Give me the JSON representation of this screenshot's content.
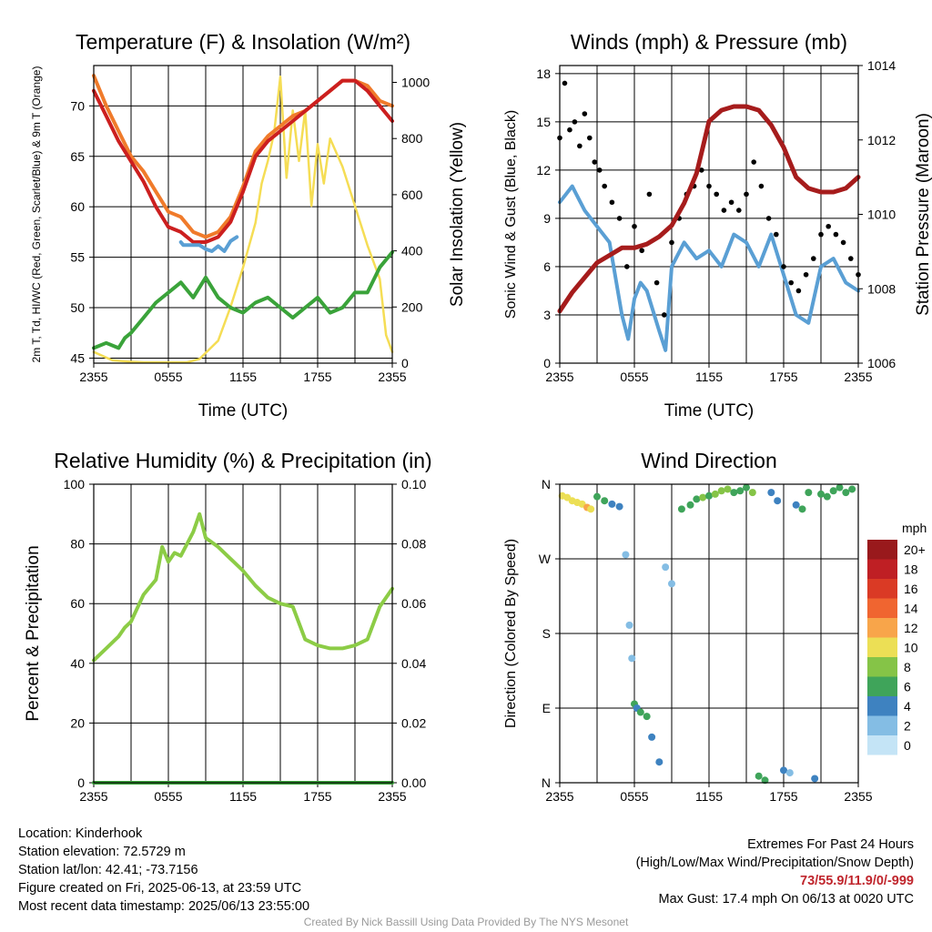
{
  "colors": {
    "temp_red": "#cc1f1f",
    "temp_orange": "#f07b2b",
    "dewpoint_green": "#3aa33a",
    "index_blue": "#5a9fd4",
    "insolation_yellow": "#f5dd55",
    "pressure_maroon": "#a61c1c",
    "wind_blue": "#5a9fd4",
    "gust_black": "#000000",
    "rh_green": "#8ccc46",
    "precip_green": "#3aa33a",
    "credit_gray": "#9a9a9a",
    "extremes_red": "#c0262d"
  },
  "chart_data": [
    {
      "id": "temp",
      "type": "line",
      "title": "Temperature (F) & Insolation (W/m²)",
      "xlabel": "Time (UTC)",
      "ylabel": "2m T, Td, HI/WC (Red, Green, Scarlet/Blue) & 9m T (Orange)",
      "y2label": "Solar Insolation (Yellow)",
      "x_ticks": [
        "2355",
        "0555",
        "1155",
        "1755",
        "2355"
      ],
      "x_range_hours": [
        0,
        24
      ],
      "ylim": [
        44.5,
        74
      ],
      "y_ticks": [
        45,
        50,
        55,
        60,
        65,
        70
      ],
      "y2lim": [
        0,
        1060
      ],
      "y2_ticks": [
        0,
        200,
        400,
        600,
        800,
        1000
      ],
      "series": [
        {
          "axis": "y2",
          "color_key": "insolation_yellow",
          "x": [
            0,
            1.5,
            3,
            4,
            5,
            6,
            7.5,
            8.5,
            10,
            11,
            12,
            13,
            13.5,
            14,
            14.5,
            15,
            15.5,
            16,
            16.5,
            17,
            17.5,
            18,
            18.5,
            19,
            20,
            21,
            22,
            23,
            23.5,
            24
          ],
          "y": [
            40,
            10,
            5,
            3,
            3,
            3,
            3,
            15,
            80,
            200,
            340,
            500,
            640,
            720,
            820,
            1020,
            660,
            900,
            720,
            900,
            560,
            780,
            640,
            800,
            700,
            560,
            420,
            300,
            100,
            40
          ]
        },
        {
          "axis": "y",
          "color_key": "temp_orange",
          "x": [
            0,
            1,
            2,
            3,
            4,
            5,
            6,
            7,
            8,
            9,
            10,
            11,
            12,
            13,
            14,
            15,
            16,
            17,
            18,
            19,
            20,
            21,
            22,
            23,
            24
          ],
          "y": [
            73,
            70,
            67.5,
            65,
            63.5,
            61.5,
            59.5,
            59,
            57.5,
            57,
            57.5,
            59,
            62,
            65.5,
            67,
            68,
            69,
            69.5,
            70.5,
            71.5,
            72.5,
            72.5,
            72,
            70.5,
            70
          ]
        },
        {
          "axis": "y",
          "color_key": "temp_red",
          "x": [
            0,
            1,
            2,
            3,
            4,
            5,
            6,
            7,
            8,
            9,
            10,
            11,
            12,
            13,
            14,
            15,
            16,
            17,
            18,
            19,
            20,
            21,
            22,
            23,
            24
          ],
          "y": [
            71.5,
            69,
            66.5,
            64.5,
            62.5,
            60,
            58,
            57.5,
            56.5,
            56.5,
            57,
            58.5,
            61.5,
            65,
            66.5,
            67.5,
            68.5,
            69.5,
            70.5,
            71.5,
            72.5,
            72.5,
            71.5,
            70,
            68.5
          ]
        },
        {
          "axis": "y",
          "color_key": "index_blue",
          "x": [
            7,
            7.2,
            8.5,
            9,
            9.5,
            10,
            10.5,
            11,
            11.5
          ],
          "y": [
            56.5,
            56.2,
            56.2,
            55.8,
            55.6,
            56.1,
            55.6,
            56.6,
            57
          ]
        },
        {
          "axis": "y",
          "color_key": "dewpoint_green",
          "x": [
            0,
            1,
            2,
            2.5,
            3,
            4,
            5,
            6,
            7,
            8,
            9,
            10,
            11,
            12,
            13,
            14,
            15,
            16,
            17,
            18,
            19,
            20,
            21,
            22,
            23,
            24
          ],
          "y": [
            46,
            46.5,
            46,
            47,
            47.5,
            49,
            50.5,
            51.5,
            52.5,
            51,
            53,
            51,
            50,
            49.5,
            50.5,
            51,
            50,
            49,
            50,
            51,
            49.5,
            50,
            51.5,
            51.5,
            54,
            55.5
          ]
        }
      ]
    },
    {
      "id": "wind",
      "type": "line",
      "title": "Winds (mph) & Pressure (mb)",
      "xlabel": "Time (UTC)",
      "ylabel": "Sonic Wind & Gust (Blue, Black)",
      "y2label": "Station Pressure (Maroon)",
      "x_ticks": [
        "2355",
        "0555",
        "1155",
        "1755",
        "2355"
      ],
      "x_range_hours": [
        0,
        24
      ],
      "ylim": [
        0,
        18.5
      ],
      "y_ticks": [
        0,
        3,
        6,
        9,
        12,
        15,
        18
      ],
      "y2lim": [
        1006,
        1014
      ],
      "y2_ticks": [
        1006,
        1008,
        1010,
        1012,
        1014
      ],
      "series": [
        {
          "axis": "y",
          "kind": "line",
          "color_key": "wind_blue",
          "x": [
            0,
            1,
            2,
            3,
            4,
            5,
            5.5,
            6,
            6.5,
            7,
            8,
            8.5,
            9,
            10,
            11,
            12,
            13,
            14,
            15,
            16,
            17,
            18,
            19,
            20,
            21,
            22,
            23,
            24
          ],
          "y": [
            10,
            11,
            9.5,
            8.5,
            7.5,
            3,
            1.5,
            4,
            5,
            4.5,
            2,
            0.8,
            6,
            7.5,
            6.5,
            7,
            6,
            8,
            7.5,
            6,
            8,
            5.5,
            3,
            2.5,
            6,
            6.5,
            5,
            4.5
          ]
        },
        {
          "axis": "y",
          "kind": "points",
          "color_key": "gust_black",
          "x": [
            0,
            0.4,
            0.8,
            1.2,
            1.6,
            2,
            2.4,
            2.8,
            3.2,
            3.6,
            4.2,
            4.8,
            5.4,
            6,
            6.6,
            7.2,
            7.8,
            8.4,
            9,
            9.6,
            10.2,
            10.8,
            11.4,
            12,
            12.6,
            13.2,
            13.8,
            14.4,
            15,
            15.6,
            16.2,
            16.8,
            17.4,
            18,
            18.6,
            19.2,
            19.8,
            20.4,
            21,
            21.6,
            22.2,
            22.8,
            23.4,
            24
          ],
          "y": [
            14,
            17.4,
            14.5,
            15,
            13.5,
            15.5,
            14,
            12.5,
            12,
            11,
            10,
            9,
            6,
            8.5,
            7,
            10.5,
            5,
            3,
            7.5,
            9,
            10.5,
            11,
            12,
            11,
            10.5,
            9.5,
            10,
            9.5,
            10.5,
            12.5,
            11,
            9,
            8,
            6,
            5,
            4.5,
            5.5,
            6.5,
            8,
            8.5,
            8,
            7.5,
            6.5,
            5.5
          ]
        },
        {
          "axis": "y2",
          "kind": "line",
          "color_key": "pressure_maroon",
          "x": [
            0,
            1,
            2,
            3,
            4,
            5,
            6,
            7,
            8,
            9,
            10,
            11,
            11.5,
            12,
            13,
            14,
            15,
            16,
            17,
            18,
            19,
            20,
            21,
            22,
            23,
            24
          ],
          "y": [
            1007.4,
            1007.9,
            1008.3,
            1008.7,
            1008.9,
            1009.1,
            1009.1,
            1009.2,
            1009.4,
            1009.7,
            1010.3,
            1011.1,
            1011.8,
            1012.5,
            1012.8,
            1012.9,
            1012.9,
            1012.8,
            1012.4,
            1011.8,
            1011.0,
            1010.7,
            1010.6,
            1010.6,
            1010.7,
            1011.0
          ]
        }
      ]
    },
    {
      "id": "rh",
      "type": "line",
      "title": "Relative Humidity (%) & Precipitation (in)",
      "xlabel": "",
      "ylabel": "Percent & Precipitation",
      "x_ticks": [
        "2355",
        "0555",
        "1155",
        "1755",
        "2355"
      ],
      "x_range_hours": [
        0,
        24
      ],
      "ylim": [
        0,
        100
      ],
      "y_ticks": [
        0,
        20,
        40,
        60,
        80,
        100
      ],
      "y2lim": [
        0,
        0.1
      ],
      "y2_ticks": [
        "0.00",
        "0.02",
        "0.04",
        "0.06",
        "0.08",
        "0.10"
      ],
      "series": [
        {
          "axis": "y",
          "color_key": "rh_green",
          "x": [
            0,
            1,
            2,
            2.5,
            3,
            4,
            5,
            5.5,
            6,
            6.5,
            7,
            8,
            8.5,
            9,
            10,
            11,
            12,
            13,
            14,
            15,
            16,
            17,
            18,
            19,
            20,
            21,
            22,
            23,
            24
          ],
          "y": [
            41,
            45,
            49,
            52,
            54,
            63,
            68,
            79,
            74,
            77,
            76,
            84,
            90,
            82,
            79,
            75,
            71,
            66,
            62,
            60,
            59,
            48,
            46,
            45,
            45,
            46,
            48,
            59,
            65
          ]
        },
        {
          "axis": "y2",
          "color_key": "precip_green",
          "x": [
            0,
            24
          ],
          "y": [
            0,
            0
          ]
        }
      ]
    },
    {
      "id": "wdir",
      "type": "scatter",
      "title": "Wind Direction",
      "xlabel": "",
      "ylabel": "Direction (Colored By Speed)",
      "x_ticks": [
        "2355",
        "0555",
        "1155",
        "1755",
        "2355"
      ],
      "x_range_hours": [
        0,
        24
      ],
      "ylim": [
        0,
        360
      ],
      "y_ticks": [
        "N",
        "E",
        "S",
        "W",
        "N"
      ],
      "legend": {
        "title": "mph",
        "labels": [
          "20+",
          "18",
          "16",
          "14",
          "12",
          "10",
          "8",
          "6",
          "4",
          "2",
          "0"
        ],
        "colors": [
          "#99191c",
          "#bf1f24",
          "#da3a25",
          "#f06530",
          "#f8a54a",
          "#ecdf55",
          "#85c447",
          "#3fa45a",
          "#3e82c0",
          "#84bde4",
          "#c4e4f6"
        ],
        "position": "right"
      },
      "points": {
        "x": [
          0.2,
          0.6,
          1,
          1.4,
          1.8,
          2.2,
          2.5,
          3,
          3.6,
          4.2,
          4.8,
          5.3,
          5.6,
          5.8,
          6,
          6.2,
          6.5,
          7,
          7.4,
          8,
          8.5,
          9,
          9.8,
          10.5,
          11,
          11.5,
          12,
          12.5,
          13,
          13.5,
          14,
          14.5,
          15,
          15.5,
          16,
          16.5,
          17,
          17.5,
          18,
          18.5,
          19,
          19.5,
          20,
          20.5,
          21,
          21.5,
          22,
          22.5,
          23,
          23.5
        ],
        "y": [
          346,
          344,
          340,
          338,
          336,
          332,
          330,
          345,
          340,
          336,
          333,
          275,
          190,
          150,
          95,
          90,
          85,
          80,
          55,
          25,
          260,
          240,
          330,
          335,
          342,
          344,
          346,
          348,
          352,
          354,
          350,
          352,
          356,
          350,
          8,
          3,
          350,
          340,
          15,
          12,
          335,
          330,
          350,
          5,
          348,
          345,
          352,
          356,
          350,
          354
        ],
        "speed": [
          10,
          10,
          9,
          10,
          9,
          11,
          9,
          5,
          5,
          4,
          4,
          2,
          2,
          2,
          6,
          4,
          5,
          5,
          3,
          3,
          2,
          2,
          5,
          5,
          6,
          7,
          6,
          7,
          7,
          7,
          6,
          6,
          6,
          7,
          6,
          5,
          4,
          4,
          3,
          2,
          4,
          5,
          6,
          4,
          5,
          5,
          5,
          5,
          6,
          6
        ]
      }
    }
  ],
  "info_left": [
    "Location: Kinderhook",
    "Station elevation: 72.5729 m",
    "Station lat/lon: 42.41; -73.7156",
    "Figure created on Fri, 2025-06-13, at 23:59 UTC",
    "Most recent data timestamp: 2025/06/13 23:55:00"
  ],
  "info_right": {
    "line1": "Extremes For Past 24 Hours",
    "line2": "(High/Low/Max Wind/Precipitation/Snow Depth)",
    "extremes": "73/55.9/11.9/0/-999",
    "gust": "Max Gust: 17.4 mph On 06/13 at 0020 UTC"
  },
  "credit": "Created By Nick Bassill Using Data Provided By The NYS Mesonet"
}
